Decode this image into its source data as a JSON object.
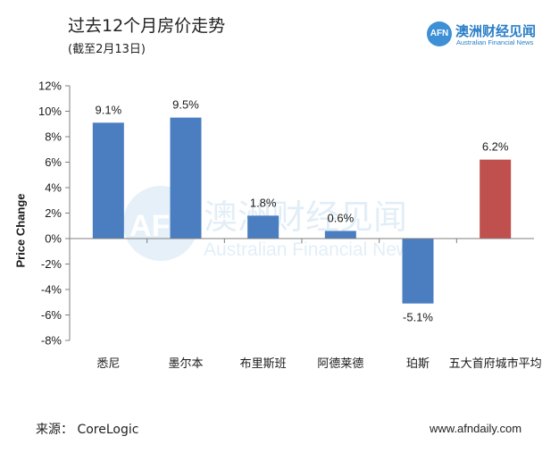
{
  "header": {
    "title": "过去12个月房价走势",
    "subtitle": "(截至2月13日)"
  },
  "logo": {
    "mark": "AFN",
    "name_cn": "澳洲财经见闻",
    "name_en": "Australian Financial News"
  },
  "watermark": {
    "mark": "AFN",
    "name_cn": "澳洲财经见闻",
    "name_en": "Australian Financial News"
  },
  "footer": {
    "source": "来源： CoreLogic",
    "website": "www.afndaily.com"
  },
  "colors": {
    "bar_default": "#4a7ec0",
    "bar_highlight": "#c0504d",
    "axis": "#7f7f7f"
  },
  "chart_data": {
    "type": "bar",
    "title": "过去12个月房价走势",
    "subtitle": "(截至2月13日)",
    "xlabel": "",
    "ylabel": "Price Change",
    "ylim": [
      -8,
      12
    ],
    "yticks": [
      "12%",
      "10%",
      "8%",
      "6%",
      "4%",
      "2%",
      "0%",
      "-2%",
      "-4%",
      "-6%",
      "-8%"
    ],
    "categories": [
      "悉尼",
      "墨尔本",
      "布里斯班",
      "阿德莱德",
      "珀斯",
      "五大首府城市平均"
    ],
    "values": [
      9.1,
      9.5,
      1.8,
      0.6,
      -5.1,
      6.2
    ],
    "data_labels": [
      "9.1%",
      "9.5%",
      "1.8%",
      "0.6%",
      "-5.1%",
      "6.2%"
    ],
    "highlight_index": 5,
    "grid": false,
    "legend": "none"
  }
}
